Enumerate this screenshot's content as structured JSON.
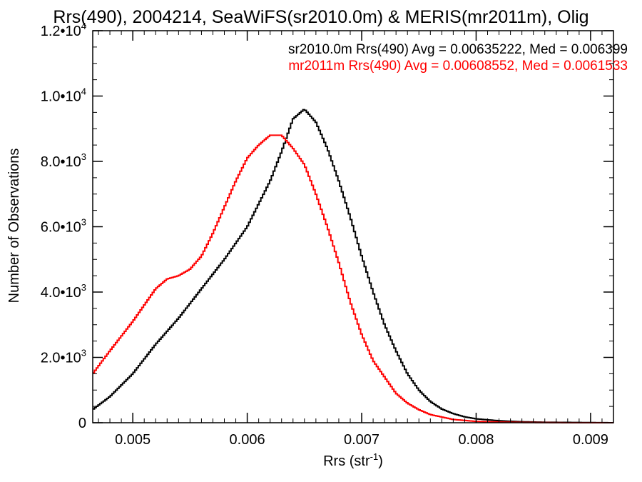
{
  "chart_data": {
    "type": "line",
    "title": "Rrs(490), 2004214, SeaWiFS(sr2010.0m) & MERIS(mr2011m), Olig",
    "xlabel": "Rrs (str",
    "xlabel_sup": "-1",
    "xlabel_close": ")",
    "ylabel": "Number of Observations",
    "xlim": [
      0.00465,
      0.0092
    ],
    "ylim": [
      0,
      12000
    ],
    "x_ticks": [
      {
        "value": 0.005,
        "label": "0.005"
      },
      {
        "value": 0.006,
        "label": "0.006"
      },
      {
        "value": 0.007,
        "label": "0.007"
      },
      {
        "value": 0.008,
        "label": "0.008"
      },
      {
        "value": 0.009,
        "label": "0.009"
      }
    ],
    "y_ticks": [
      {
        "value": 0,
        "mant": "0",
        "exp": ""
      },
      {
        "value": 2000,
        "mant": "2.0•10",
        "exp": "3"
      },
      {
        "value": 4000,
        "mant": "4.0•10",
        "exp": "3"
      },
      {
        "value": 6000,
        "mant": "6.0•10",
        "exp": "3"
      },
      {
        "value": 8000,
        "mant": "8.0•10",
        "exp": "3"
      },
      {
        "value": 10000,
        "mant": "1.0•10",
        "exp": "4"
      },
      {
        "value": 12000,
        "mant": "1.2•10",
        "exp": "4"
      }
    ],
    "legend": [
      {
        "text": "sr2010.0m Rrs(490) Avg = 0.00635222, Med = 0.006399",
        "color": "#000000"
      },
      {
        "text": "mr2011m Rrs(490) Avg = 0.00608552, Med = 0.0061533",
        "color": "#ff0000"
      }
    ],
    "legend_placement": "top-right",
    "grid": false,
    "series": [
      {
        "color": "#000000",
        "x": [
          0.00465,
          0.0048,
          0.005,
          0.0052,
          0.0054,
          0.0056,
          0.0058,
          0.006,
          0.0061,
          0.0062,
          0.0063,
          0.0064,
          0.0065,
          0.0066,
          0.0067,
          0.0068,
          0.0069,
          0.007,
          0.0071,
          0.0072,
          0.0073,
          0.0074,
          0.0075,
          0.0076,
          0.0077,
          0.0078,
          0.0079,
          0.008,
          0.0082,
          0.0084,
          0.0086,
          0.0088,
          0.009,
          0.0092
        ],
        "y": [
          400,
          800,
          1500,
          2400,
          3200,
          4100,
          5000,
          6000,
          6700,
          7400,
          8300,
          9300,
          9600,
          9200,
          8400,
          7400,
          6300,
          5100,
          4000,
          3000,
          2200,
          1500,
          1000,
          650,
          420,
          280,
          180,
          120,
          60,
          30,
          15,
          10,
          5,
          0
        ]
      },
      {
        "color": "#ff0000",
        "x": [
          0.00465,
          0.0048,
          0.005,
          0.0051,
          0.0052,
          0.0053,
          0.0054,
          0.0055,
          0.0056,
          0.0057,
          0.0058,
          0.0059,
          0.006,
          0.0061,
          0.0062,
          0.0063,
          0.0064,
          0.0065,
          0.0066,
          0.0067,
          0.0068,
          0.0069,
          0.007,
          0.0071,
          0.0072,
          0.0073,
          0.0074,
          0.0075,
          0.0076,
          0.0078,
          0.008,
          0.0082,
          0.0084,
          0.0086,
          0.0088,
          0.009,
          0.0092
        ],
        "y": [
          1500,
          2200,
          3100,
          3600,
          4100,
          4400,
          4500,
          4700,
          5100,
          5800,
          6600,
          7400,
          8100,
          8500,
          8800,
          8800,
          8400,
          7900,
          7000,
          6000,
          4900,
          3700,
          2700,
          1900,
          1400,
          900,
          600,
          400,
          250,
          100,
          40,
          20,
          10,
          5,
          0,
          0,
          0
        ]
      }
    ]
  }
}
